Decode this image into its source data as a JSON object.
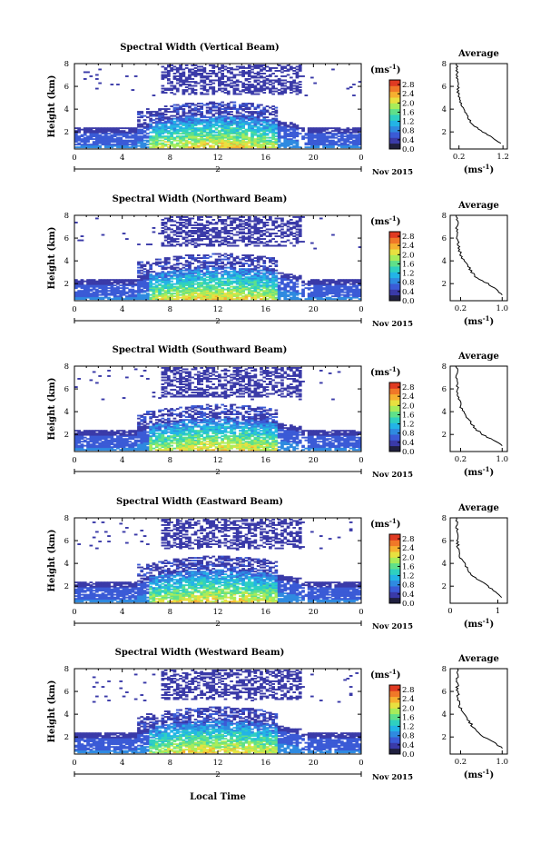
{
  "chart_data": [
    {
      "type": "heatmap",
      "title": "Spectral Width (Vertical Beam)",
      "ylabel": "Height (km)",
      "date_label": "2",
      "month_label": "Nov 2015",
      "xticks": [
        "0",
        "4",
        "8",
        "12",
        "16",
        "20",
        "0"
      ],
      "xlim": [
        0,
        24
      ],
      "yticks": [
        "2",
        "4",
        "6",
        "8"
      ],
      "ylim": [
        0.5,
        8
      ],
      "colorbar": {
        "unit": "(ms",
        "unit_exp": "-1",
        "unit_close": ")",
        "ticks": [
          "0.0",
          "0.4",
          "0.8",
          "1.2",
          "1.6",
          "2.0",
          "2.4",
          "2.8"
        ],
        "range": [
          0,
          3.0
        ]
      },
      "average_profile": {
        "title": "Average",
        "xticks": [
          "0.2",
          "1.2"
        ],
        "xlim": [
          0,
          1.3
        ],
        "xlabel": "(ms",
        "xlabel_exp": "-1",
        "xlabel_close": ")",
        "yticks": [
          "2",
          "4",
          "6",
          "8"
        ],
        "ylim": [
          0.5,
          8
        ],
        "height_km": [
          1.0,
          1.5,
          2.0,
          2.5,
          3.0,
          3.5,
          4.0,
          4.5,
          5.0,
          5.5,
          6.0,
          6.5,
          7.0,
          7.5,
          8.0
        ],
        "width_ms": [
          1.15,
          0.95,
          0.75,
          0.55,
          0.45,
          0.38,
          0.32,
          0.24,
          0.2,
          0.18,
          0.17,
          0.16,
          0.15,
          0.15,
          0.15
        ]
      }
    },
    {
      "type": "heatmap",
      "title": "Spectral Width (Northward Beam)",
      "ylabel": "Height (km)",
      "date_label": "2",
      "month_label": "Nov 2015",
      "xticks": [
        "0",
        "4",
        "8",
        "12",
        "16",
        "20",
        "0"
      ],
      "xlim": [
        0,
        24
      ],
      "yticks": [
        "2",
        "4",
        "6",
        "8"
      ],
      "ylim": [
        0.5,
        8
      ],
      "colorbar": {
        "unit": "(ms",
        "unit_exp": "-1",
        "unit_close": ")",
        "ticks": [
          "0.0",
          "0.4",
          "0.8",
          "1.2",
          "1.6",
          "2.0",
          "2.4",
          "2.8"
        ],
        "range": [
          0,
          3.0
        ]
      },
      "average_profile": {
        "title": "Average",
        "xticks": [
          "0.2",
          "1.0"
        ],
        "xlim": [
          0,
          1.1
        ],
        "xlabel": "(ms",
        "xlabel_exp": "-1",
        "xlabel_close": ")",
        "yticks": [
          "2",
          "4",
          "6",
          "8"
        ],
        "ylim": [
          0.5,
          8
        ],
        "height_km": [
          1.0,
          1.5,
          2.0,
          2.5,
          3.0,
          3.5,
          4.0,
          4.5,
          5.0,
          5.5,
          6.0,
          6.5,
          7.0,
          7.5,
          8.0
        ],
        "width_ms": [
          1.0,
          0.9,
          0.72,
          0.5,
          0.42,
          0.34,
          0.26,
          0.2,
          0.17,
          0.15,
          0.14,
          0.14,
          0.13,
          0.13,
          0.13
        ]
      }
    },
    {
      "type": "heatmap",
      "title": "Spectral Width (Southward Beam)",
      "ylabel": "Height (km)",
      "date_label": "2",
      "month_label": "Nov 2015",
      "xticks": [
        "0",
        "4",
        "8",
        "12",
        "16",
        "20",
        "0"
      ],
      "xlim": [
        0,
        24
      ],
      "yticks": [
        "2",
        "4",
        "6",
        "8"
      ],
      "ylim": [
        0.5,
        8
      ],
      "colorbar": {
        "unit": "(ms",
        "unit_exp": "-1",
        "unit_close": ")",
        "ticks": [
          "0.0",
          "0.4",
          "0.8",
          "1.2",
          "1.6",
          "2.0",
          "2.4",
          "2.8"
        ],
        "range": [
          0,
          3.0
        ]
      },
      "average_profile": {
        "title": "Average",
        "xticks": [
          "0.2",
          "1.0"
        ],
        "xlim": [
          0,
          1.1
        ],
        "xlabel": "(ms",
        "xlabel_exp": "-1",
        "xlabel_close": ")",
        "yticks": [
          "2",
          "4",
          "6",
          "8"
        ],
        "ylim": [
          0.5,
          8
        ],
        "height_km": [
          1.0,
          1.5,
          2.0,
          2.5,
          3.0,
          3.5,
          4.0,
          4.5,
          5.0,
          5.5,
          6.0,
          6.5,
          7.0,
          7.5,
          8.0
        ],
        "width_ms": [
          1.0,
          0.82,
          0.62,
          0.48,
          0.4,
          0.33,
          0.26,
          0.2,
          0.17,
          0.15,
          0.14,
          0.13,
          0.13,
          0.13,
          0.13
        ]
      }
    },
    {
      "type": "heatmap",
      "title": "Spectral Width (Eastward Beam)",
      "ylabel": "Height (km)",
      "date_label": "2",
      "month_label": "Nov 2015",
      "xticks": [
        "0",
        "4",
        "8",
        "12",
        "16",
        "20",
        "0"
      ],
      "xlim": [
        0,
        24
      ],
      "yticks": [
        "2",
        "4",
        "6",
        "8"
      ],
      "ylim": [
        0.5,
        8
      ],
      "colorbar": {
        "unit": "(ms",
        "unit_exp": "-1",
        "unit_close": ")",
        "ticks": [
          "0.0",
          "0.4",
          "0.8",
          "1.2",
          "1.6",
          "2.0",
          "2.4",
          "2.8"
        ],
        "range": [
          0,
          3.0
        ]
      },
      "average_profile": {
        "title": "Average",
        "xticks": [
          "0",
          "1"
        ],
        "xlim": [
          0,
          1.2
        ],
        "xlabel": "(ms",
        "xlabel_exp": "-1",
        "xlabel_close": ")",
        "yticks": [
          "2",
          "4",
          "6",
          "8"
        ],
        "ylim": [
          0.5,
          8
        ],
        "height_km": [
          1.0,
          1.5,
          2.0,
          2.5,
          3.0,
          3.5,
          4.0,
          4.5,
          5.0,
          5.5,
          6.0,
          6.5,
          7.0,
          7.5,
          8.0
        ],
        "width_ms": [
          1.1,
          0.95,
          0.8,
          0.6,
          0.45,
          0.36,
          0.3,
          0.22,
          0.18,
          0.16,
          0.15,
          0.14,
          0.14,
          0.14,
          0.14
        ]
      }
    },
    {
      "type": "heatmap",
      "title": "Spectral Width (Westward Beam)",
      "ylabel": "Height (km)",
      "date_label": "2",
      "month_label": "Nov 2015",
      "xticks": [
        "0",
        "4",
        "8",
        "12",
        "16",
        "20",
        "0"
      ],
      "xlim": [
        0,
        24
      ],
      "yticks": [
        "2",
        "4",
        "6",
        "8"
      ],
      "ylim": [
        0.5,
        8
      ],
      "colorbar": {
        "unit": "(ms",
        "unit_exp": "-1",
        "unit_close": ")",
        "ticks": [
          "0.0",
          "0.4",
          "0.8",
          "1.2",
          "1.6",
          "2.0",
          "2.4",
          "2.8"
        ],
        "range": [
          0,
          3.0
        ]
      },
      "average_profile": {
        "title": "Average",
        "xticks": [
          "0.2",
          "1.0"
        ],
        "xlim": [
          0,
          1.1
        ],
        "xlabel": "(ms",
        "xlabel_exp": "-1",
        "xlabel_close": ")",
        "yticks": [
          "2",
          "4",
          "6",
          "8"
        ],
        "ylim": [
          0.5,
          8
        ],
        "height_km": [
          1.0,
          1.5,
          2.0,
          2.5,
          3.0,
          3.5,
          4.0,
          4.5,
          5.0,
          5.5,
          6.0,
          6.5,
          7.0,
          7.5,
          8.0
        ],
        "width_ms": [
          1.0,
          0.85,
          0.66,
          0.5,
          0.42,
          0.34,
          0.25,
          0.2,
          0.17,
          0.15,
          0.14,
          0.14,
          0.13,
          0.13,
          0.13
        ]
      }
    }
  ],
  "xlabel": "Local Time",
  "colors": {
    "colormap": [
      "#202040",
      "#3a3aa8",
      "#3b5bd6",
      "#2f8ae0",
      "#23b4e6",
      "#2fd0c0",
      "#5fe08a",
      "#a8ec5a",
      "#e8e040",
      "#f6b030",
      "#f07828",
      "#e03a22"
    ]
  }
}
